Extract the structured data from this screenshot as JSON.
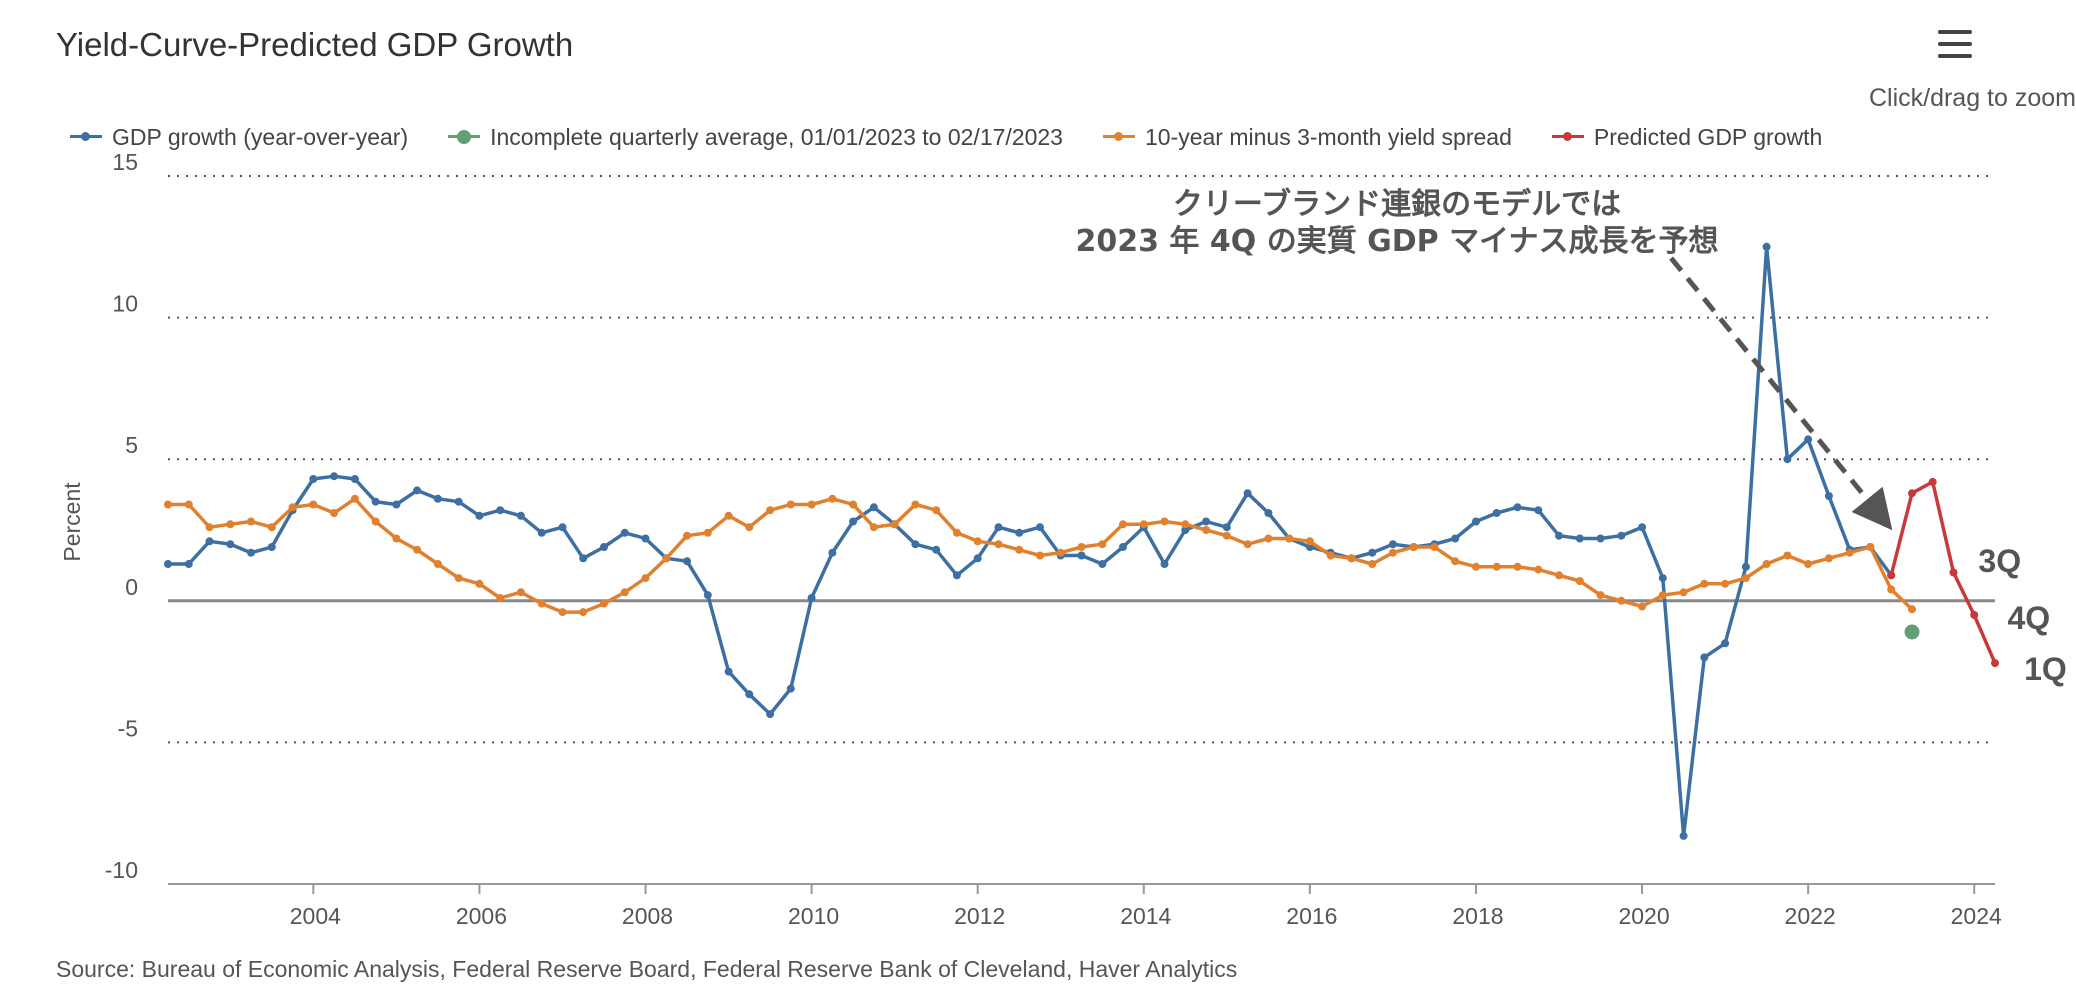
{
  "header": {
    "title": "Yield-Curve-Predicted GDP Growth",
    "zoom_hint": "Click/drag to zoom",
    "menu_icon": "hamburger-menu-icon"
  },
  "legend": [
    {
      "label": "GDP growth (year-over-year)",
      "color": "#3e6fa3",
      "symbol": "line-dot"
    },
    {
      "label": "Incomplete quarterly average, 01/01/2023 to 02/17/2023",
      "color": "#649e75",
      "symbol": "big-dot"
    },
    {
      "label": "10-year minus 3-month yield spread",
      "color": "#e0812f",
      "symbol": "line-dot"
    },
    {
      "label": "Predicted GDP growth",
      "color": "#c8393a",
      "symbol": "line-dot"
    }
  ],
  "source": "Source: Bureau of Economic Analysis, Federal Reserve Board, Federal Reserve Bank of Cleveland, Haver Analytics",
  "chart_data": {
    "type": "line",
    "ylabel": "Percent",
    "ylim": [
      -10,
      15
    ],
    "yticks": [
      15,
      10,
      5,
      0,
      -5,
      -10
    ],
    "ytick_labels": [
      "15",
      "10",
      "5",
      "0",
      "-5",
      "-10"
    ],
    "xlim": [
      2002.25,
      2024.25
    ],
    "xticks": [
      2004,
      2006,
      2008,
      2010,
      2012,
      2014,
      2016,
      2018,
      2020,
      2022,
      2024
    ],
    "xtick_labels": [
      "2004",
      "2006",
      "2008",
      "2010",
      "2012",
      "2014",
      "2016",
      "2018",
      "2020",
      "2022",
      "2024"
    ],
    "grid": "horizontal-dotted",
    "legend_position": "top",
    "series": [
      {
        "name": "GDP growth (year-over-year)",
        "color": "#3e6fa3",
        "x_start": 2002.25,
        "x_step": 0.25,
        "values": [
          1.3,
          1.3,
          2.1,
          2.0,
          1.7,
          1.9,
          3.2,
          4.3,
          4.4,
          4.3,
          3.5,
          3.4,
          3.9,
          3.6,
          3.5,
          3.0,
          3.2,
          3.0,
          2.4,
          2.6,
          1.5,
          1.9,
          2.4,
          2.2,
          1.5,
          1.4,
          0.2,
          -2.5,
          -3.3,
          -4.0,
          -3.1,
          0.1,
          1.7,
          2.8,
          3.3,
          2.7,
          2.0,
          1.8,
          0.9,
          1.5,
          2.6,
          2.4,
          2.6,
          1.6,
          1.6,
          1.3,
          1.9,
          2.6,
          1.3,
          2.5,
          2.8,
          2.6,
          3.8,
          3.1,
          2.2,
          1.9,
          1.7,
          1.5,
          1.7,
          2.0,
          1.9,
          2.0,
          2.2,
          2.8,
          3.1,
          3.3,
          3.2,
          2.3,
          2.2,
          2.2,
          2.3,
          2.6,
          0.8,
          -8.3,
          -2.0,
          -1.5,
          1.2,
          12.5,
          5.0,
          5.7,
          3.7,
          1.8,
          1.9,
          0.9
        ]
      },
      {
        "name": "Incomplete quarterly average, 01/01/2023 to 02/17/2023",
        "color": "#649e75",
        "x": [
          2023.25
        ],
        "values": [
          -1.1
        ]
      },
      {
        "name": "10-year minus 3-month yield spread",
        "color": "#e0812f",
        "x_start": 2002.25,
        "x_step": 0.25,
        "values": [
          3.4,
          3.4,
          2.6,
          2.7,
          2.8,
          2.6,
          3.3,
          3.4,
          3.1,
          3.6,
          2.8,
          2.2,
          1.8,
          1.3,
          0.8,
          0.6,
          0.1,
          0.3,
          -0.1,
          -0.4,
          -0.4,
          -0.1,
          0.3,
          0.8,
          1.5,
          2.3,
          2.4,
          3.0,
          2.6,
          3.2,
          3.4,
          3.4,
          3.6,
          3.4,
          2.6,
          2.7,
          3.4,
          3.2,
          2.4,
          2.1,
          2.0,
          1.8,
          1.6,
          1.7,
          1.9,
          2.0,
          2.7,
          2.7,
          2.8,
          2.7,
          2.5,
          2.3,
          2.0,
          2.2,
          2.2,
          2.1,
          1.6,
          1.5,
          1.3,
          1.7,
          1.9,
          1.9,
          1.4,
          1.2,
          1.2,
          1.2,
          1.1,
          0.9,
          0.7,
          0.2,
          0.0,
          -0.2,
          0.2,
          0.3,
          0.6,
          0.6,
          0.8,
          1.3,
          1.6,
          1.3,
          1.5,
          1.7,
          1.9,
          0.4,
          -0.3
        ]
      },
      {
        "name": "Predicted GDP growth",
        "color": "#c8393a",
        "x_start": 2023.0,
        "x_step": 0.25,
        "values": [
          0.9,
          3.8,
          4.2,
          1.0,
          -0.5,
          -2.2
        ]
      }
    ],
    "annotations": [
      {
        "text_lines": [
          "クリーブランド連銀のモデルでは",
          "2023 年 4Q の実質 GDP マイナス成長を予想"
        ],
        "arrow_from": [
          2020.35,
          12.1
        ],
        "arrow_to": [
          2022.9,
          2.9
        ]
      },
      {
        "text": "3Q",
        "x": 2024.05,
        "y": 1.4
      },
      {
        "text": "4Q",
        "x": 2024.4,
        "y": -0.6
      },
      {
        "text": "1Q",
        "x": 2024.6,
        "y": -2.4
      }
    ]
  }
}
